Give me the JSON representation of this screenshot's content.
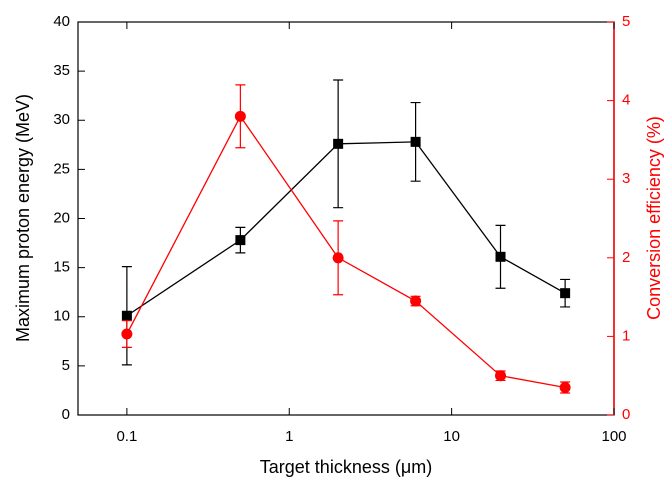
{
  "chart_data": {
    "type": "line",
    "x_label": "Target thickness (μm)",
    "y_label": "Maximum proton energy (MeV)",
    "y2_label": "Conversion efficiency (%)",
    "x": [
      0.1,
      0.5,
      2,
      6,
      20,
      50
    ],
    "xlog": true,
    "xlim": [
      0.05,
      100
    ],
    "xticks": [
      0.1,
      1,
      10,
      100
    ],
    "ylim": [
      0,
      40
    ],
    "yticks": [
      0,
      5,
      10,
      15,
      20,
      25,
      30,
      35,
      40
    ],
    "y2lim": [
      0,
      5
    ],
    "y2ticks": [
      0,
      1,
      2,
      3,
      4,
      5
    ],
    "series": [
      {
        "color": "#000000",
        "marker": "square",
        "values": [
          10.1,
          17.8,
          27.6,
          27.8,
          16.1,
          12.4
        ],
        "errors": [
          5,
          1.3,
          6.5,
          4,
          3.2,
          1.4
        ]
      },
      {
        "color": "#ff0000",
        "marker": "circle",
        "axis": "y2",
        "values": [
          1.03,
          3.8,
          2.0,
          1.45,
          0.5,
          0.35
        ],
        "errors": [
          0.17,
          0.4,
          0.47,
          0.06,
          0.06,
          0.07
        ]
      }
    ]
  }
}
